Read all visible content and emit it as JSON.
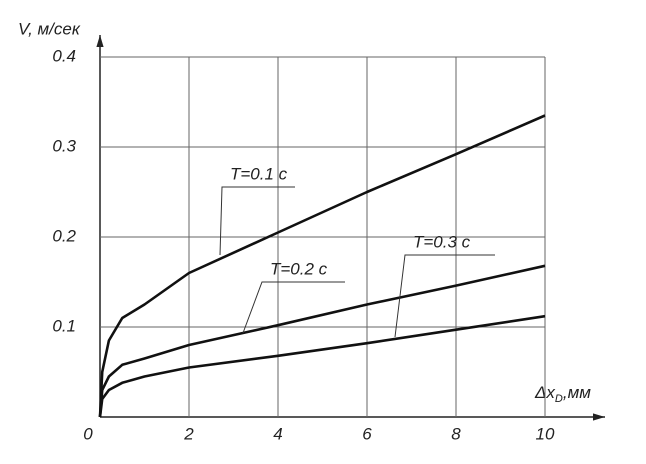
{
  "chart_data": {
    "type": "line",
    "y_label": "V, м/сек",
    "x_label": {
      "main": "Δx",
      "sub": "D",
      "unit": ",мм"
    },
    "x": [
      0,
      0.05,
      0.2,
      0.5,
      1,
      2,
      4,
      6,
      8,
      10
    ],
    "series": [
      {
        "name": "T=0.1 с",
        "color": "#111111",
        "values": [
          0,
          0.05,
          0.085,
          0.11,
          0.125,
          0.16,
          0.205,
          0.25,
          0.292,
          0.335
        ]
      },
      {
        "name": "T=0.2 с",
        "color": "#111111",
        "values": [
          0,
          0.03,
          0.045,
          0.058,
          0.065,
          0.08,
          0.102,
          0.125,
          0.146,
          0.168
        ]
      },
      {
        "name": "T=0.3 с",
        "color": "#111111",
        "values": [
          0,
          0.02,
          0.03,
          0.038,
          0.045,
          0.055,
          0.068,
          0.082,
          0.097,
          0.112
        ]
      }
    ],
    "xlim": [
      0,
      10
    ],
    "xticks": [
      0,
      2,
      4,
      6,
      8,
      10
    ],
    "ylim": [
      0,
      0.4
    ],
    "yticks": [
      0.1,
      0.2,
      0.3,
      0.4
    ],
    "grid": true
  }
}
